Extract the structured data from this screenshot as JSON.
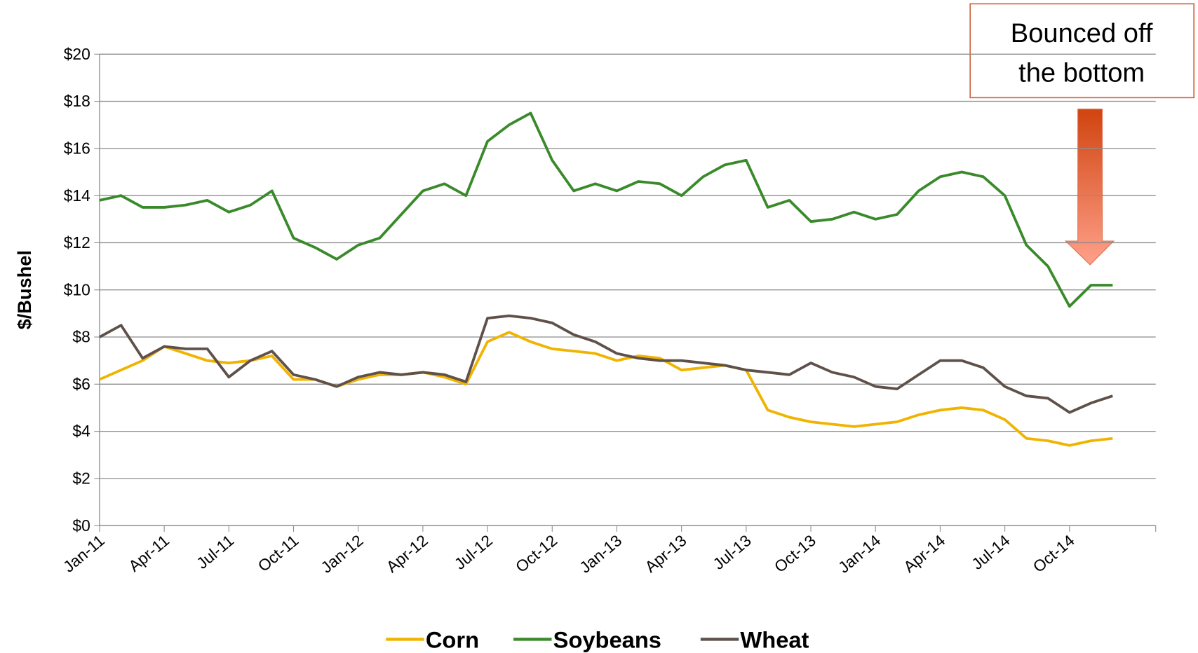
{
  "chart_data": {
    "type": "line",
    "y_label": "$/Bushel",
    "annotation": [
      "Bounced off",
      "the bottom"
    ],
    "categories": [
      "Jan-11",
      null,
      null,
      "Apr-11",
      null,
      null,
      "Jul-11",
      null,
      null,
      "Oct-11",
      null,
      null,
      "Jan-12",
      null,
      null,
      "Apr-12",
      null,
      null,
      "Jul-12",
      null,
      null,
      "Oct-12",
      null,
      null,
      "Jan-13",
      null,
      null,
      "Apr-13",
      null,
      null,
      "Jul-13",
      null,
      null,
      "Oct-13",
      null,
      null,
      "Jan-14",
      null,
      null,
      "Apr-14",
      null,
      null,
      "Jul-14",
      null,
      null,
      "Oct-14",
      null,
      null
    ],
    "series": [
      {
        "name": "Corn",
        "color": "#f0b400",
        "values": [
          6.2,
          6.6,
          7.0,
          7.6,
          7.3,
          7.0,
          6.9,
          7.0,
          7.2,
          6.2,
          6.2,
          5.9,
          6.2,
          6.4,
          6.4,
          6.5,
          6.3,
          6.0,
          7.8,
          8.2,
          7.8,
          7.5,
          7.4,
          7.3,
          7.0,
          7.2,
          7.1,
          6.6,
          6.7,
          6.8,
          6.6,
          4.9,
          4.6,
          4.4,
          4.3,
          4.2,
          4.3,
          4.4,
          4.7,
          4.9,
          5.0,
          4.9,
          4.5,
          3.7,
          3.6,
          3.4,
          3.6,
          3.7
        ]
      },
      {
        "name": "Soybeans",
        "color": "#3a8a2c",
        "values": [
          13.8,
          14.0,
          13.5,
          13.5,
          13.6,
          13.8,
          13.3,
          13.6,
          14.2,
          12.2,
          11.8,
          11.3,
          11.9,
          12.2,
          13.2,
          14.2,
          14.5,
          14.0,
          16.3,
          17.0,
          17.5,
          15.5,
          14.2,
          14.5,
          14.2,
          14.6,
          14.5,
          14.0,
          14.8,
          15.3,
          15.5,
          13.5,
          13.8,
          12.9,
          13.0,
          13.3,
          13.0,
          13.2,
          14.2,
          14.8,
          15.0,
          14.8,
          14.0,
          11.9,
          11.0,
          9.3,
          10.2,
          10.2
        ]
      },
      {
        "name": "Wheat",
        "color": "#5f514a",
        "values": [
          8.0,
          8.5,
          7.1,
          7.6,
          7.5,
          7.5,
          6.3,
          7.0,
          7.4,
          6.4,
          6.2,
          5.9,
          6.3,
          6.5,
          6.4,
          6.5,
          6.4,
          6.1,
          8.8,
          8.9,
          8.8,
          8.6,
          8.1,
          7.8,
          7.3,
          7.1,
          7.0,
          7.0,
          6.9,
          6.8,
          6.6,
          6.5,
          6.4,
          6.9,
          6.5,
          6.3,
          5.9,
          5.8,
          6.4,
          7.0,
          7.0,
          6.7,
          5.9,
          5.5,
          5.4,
          4.8,
          5.2,
          5.5
        ]
      }
    ],
    "ylim": [
      0,
      20
    ],
    "yticks": [
      {
        "value": 0,
        "label": "$0"
      },
      {
        "value": 2,
        "label": "$2"
      },
      {
        "value": 4,
        "label": "$4"
      },
      {
        "value": 6,
        "label": "$6"
      },
      {
        "value": 8,
        "label": "$8"
      },
      {
        "value": 10,
        "label": "$10"
      },
      {
        "value": 12,
        "label": "$12"
      },
      {
        "value": 14,
        "label": "$14"
      },
      {
        "value": 16,
        "label": "$16"
      },
      {
        "value": 18,
        "label": "$18"
      },
      {
        "value": 20,
        "label": "$20"
      }
    ],
    "grid": true,
    "legend": "bottom"
  }
}
